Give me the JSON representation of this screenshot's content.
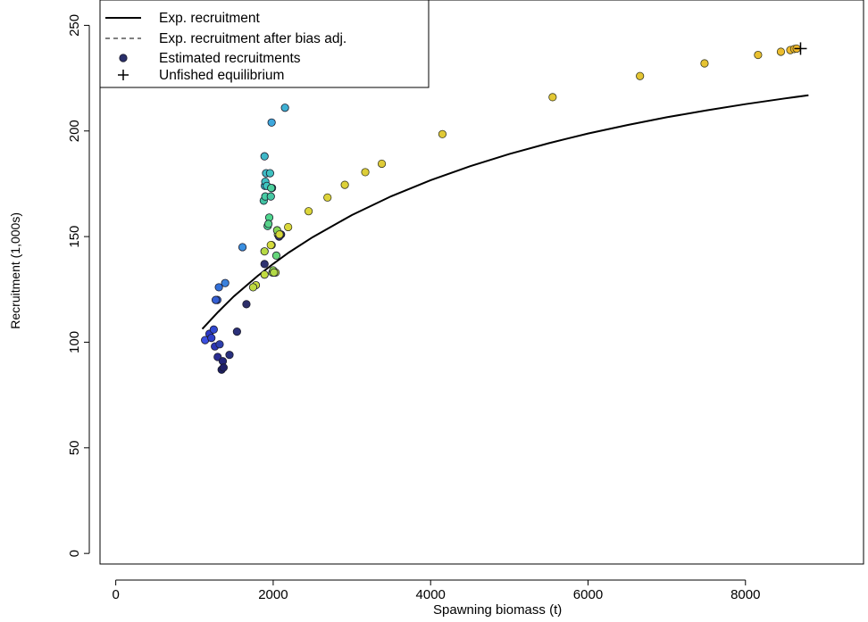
{
  "chart_data": {
    "type": "scatter",
    "title": "",
    "xlabel": "Spawning biomass (t)",
    "ylabel": "Recruitment (1,000s)",
    "xlim": [
      -200,
      9500
    ],
    "ylim": [
      -5,
      262
    ],
    "x_ticks": [
      0,
      2000,
      4000,
      6000,
      8000
    ],
    "y_ticks": [
      0,
      50,
      100,
      150,
      200,
      250
    ],
    "grid": false,
    "legend_position": "top-left",
    "legend": [
      {
        "label": "Exp. recruitment",
        "style": "solid-line"
      },
      {
        "label": "Exp. recruitment after bias adj.",
        "style": "dashed-line"
      },
      {
        "label": "Estimated recruitments",
        "style": "point"
      },
      {
        "label": "Unfished equilibrium",
        "style": "cross"
      }
    ],
    "curve": {
      "name": "Exp. recruitment",
      "x": [
        1100,
        1300,
        1500,
        1800,
        2000,
        2200,
        2500,
        3000,
        3500,
        4000,
        4500,
        5000,
        5500,
        6000,
        6500,
        7000,
        7500,
        8000,
        8500,
        8800
      ],
      "y": [
        106.3,
        114.3,
        121.7,
        131.3,
        137.1,
        142.5,
        149.7,
        160.2,
        169.1,
        176.7,
        183.3,
        189.1,
        194.2,
        198.8,
        202.8,
        206.5,
        209.7,
        212.7,
        215.4,
        216.9
      ]
    },
    "unfished_equilibrium": {
      "x": 8700,
      "y": 239
    },
    "estimated_recruitments": {
      "x": [
        1135,
        1190,
        1215,
        1245,
        1260,
        1295,
        1320,
        1345,
        1360,
        1370,
        1445,
        1540,
        1660,
        1890,
        2100,
        1290,
        1310,
        1390,
        1270,
        1610,
        1890,
        1910,
        1980,
        2150,
        1895,
        1900,
        1920,
        1960,
        1985,
        1880,
        1900,
        1970,
        1975,
        1930,
        1950,
        1980,
        2060,
        2050,
        2040,
        1940,
        1890,
        1990,
        2000,
        2030,
        2010,
        1780,
        1745,
        1890,
        2075
      ],
      "y": [
        101,
        104,
        102,
        106,
        98,
        93,
        99,
        87,
        91,
        88,
        94,
        105,
        118,
        137,
        151,
        120,
        126,
        128,
        120,
        145,
        188,
        180,
        204,
        211,
        174,
        176,
        174,
        180,
        173,
        167,
        169,
        169,
        173,
        155,
        159,
        146,
        151,
        153,
        141,
        156,
        143,
        133,
        134,
        133,
        133,
        127,
        126,
        132,
        150
      ],
      "colors": [
        "#3b4fe0",
        "#2c38c9",
        "#2e3fc8",
        "#3149d1",
        "#2b36b5",
        "#2a2d92",
        "#2d3fae",
        "#1d1f63",
        "#22257a",
        "#1e1f68",
        "#28307e",
        "#2b317a",
        "#2d2f6a",
        "#2f3370",
        "#1f1f5a",
        "#2f63d6",
        "#3270d8",
        "#3b81dc",
        "#3560d4",
        "#3a8fe0",
        "#3fb8c8",
        "#3fbac6",
        "#3ea7dc",
        "#3fb0d3",
        "#37b5c7",
        "#3fbfc2",
        "#3ec6bf",
        "#3fc1c0",
        "#44c7b2",
        "#41c2a2",
        "#48cca4",
        "#46c7a2",
        "#4cd09c",
        "#4cd28f",
        "#4ed68d",
        "#9ed94d",
        "#a6da4a",
        "#86d653",
        "#66d67a",
        "#5ad38a",
        "#b7da44",
        "#9ad84e",
        "#8fd650",
        "#c5db40",
        "#b2d946",
        "#c8dc3f",
        "#bfdb42",
        "#c2db40",
        "#2c2f6d"
      ]
    },
    "fitted_points": {
      "x": [
        1970,
        2080,
        2190,
        2450,
        2690,
        2910,
        3170,
        3380,
        4150,
        5550,
        6660,
        7480,
        8160,
        8450,
        8570,
        8620,
        8650
      ],
      "y": [
        146,
        151,
        154.5,
        162,
        168.5,
        174.5,
        180.5,
        184.5,
        198.5,
        216,
        226,
        232,
        236,
        237.5,
        238.3,
        238.8,
        239
      ],
      "colors": [
        "#d5dc3c",
        "#d8d93a",
        "#dad83a",
        "#dcd639",
        "#ddd339",
        "#ddd139",
        "#ddce38",
        "#dfcb37",
        "#e0c936",
        "#e3c834",
        "#e4c533",
        "#e6c332",
        "#e9c030",
        "#ecbd2e",
        "#efbb2c",
        "#f1b92b",
        "#f3b82a"
      ]
    }
  }
}
